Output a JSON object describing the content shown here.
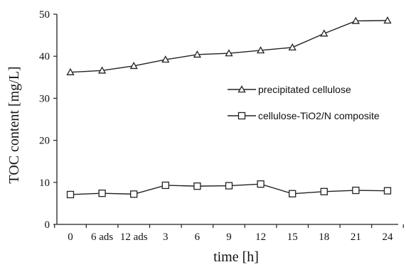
{
  "chart_data": {
    "type": "line",
    "title": "",
    "xlabel": "time [h]",
    "ylabel": "TOC content  [mg/L]",
    "categories": [
      "0",
      "6 ads",
      "12 ads",
      "3",
      "6",
      "9",
      "12",
      "15",
      "18",
      "21",
      "24"
    ],
    "ylim": [
      0,
      50
    ],
    "yticks": [
      "0",
      "10",
      "20",
      "30",
      "40",
      "50"
    ],
    "grid": false,
    "legend_position": "right-center",
    "series": [
      {
        "name": "precipitated cellulose",
        "marker": "triangle",
        "values": [
          36.2,
          36.6,
          37.7,
          39.2,
          40.4,
          40.7,
          41.4,
          42.1,
          45.4,
          48.4,
          48.5
        ]
      },
      {
        "name": "cellulose-TiO2/N composite",
        "marker": "square",
        "values": [
          7.1,
          7.4,
          7.2,
          9.3,
          9.1,
          9.2,
          9.6,
          7.3,
          7.8,
          8.1,
          8.0
        ]
      }
    ]
  }
}
